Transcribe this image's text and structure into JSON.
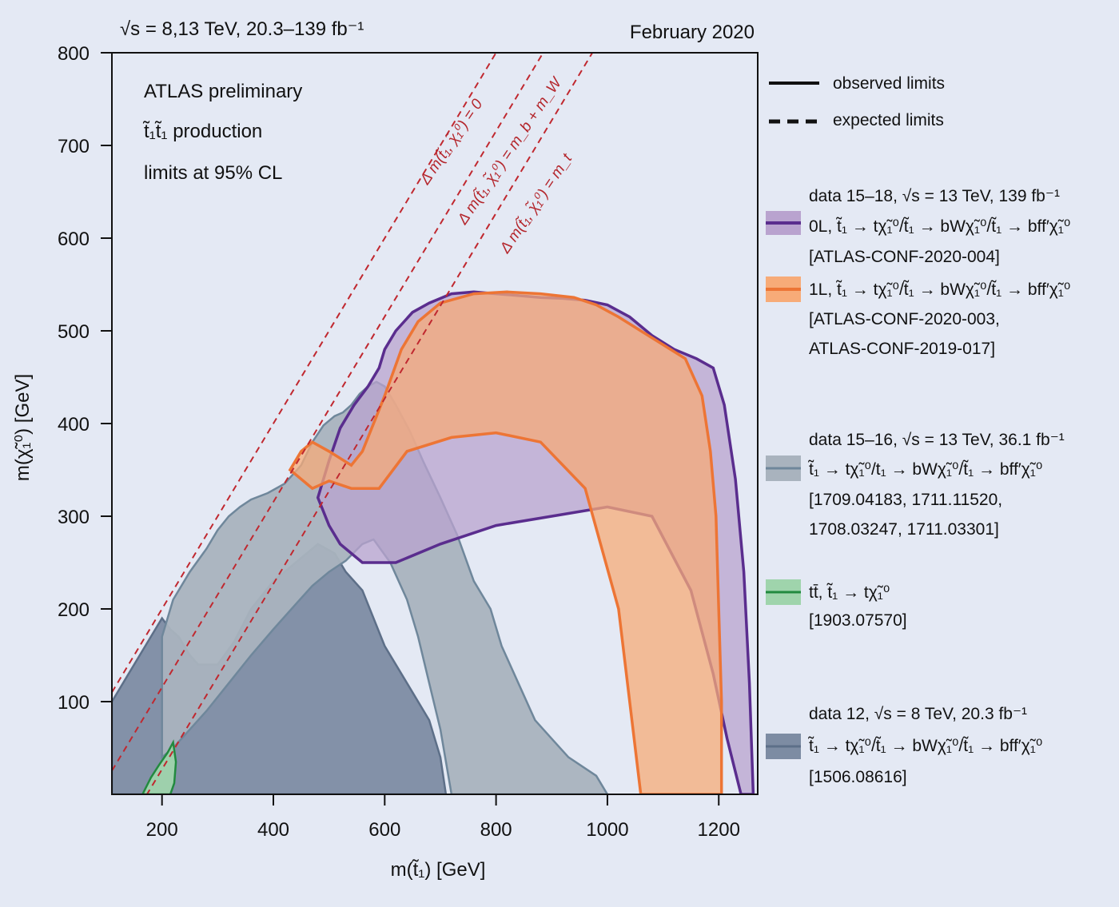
{
  "header": {
    "energy_label": "√s = 8,13 TeV, 20.3–139 fb⁻¹",
    "date_label": "February 2020"
  },
  "annotations": {
    "experiment": "ATLAS preliminary",
    "process": "t̃₁t̃₁ production",
    "cl": "limits at 95% CL"
  },
  "diagonals": {
    "d0": "Δ m(t̃₁, χ̃₁⁰) = 0",
    "dbw": "Δ m(t̃₁, χ̃₁⁰) = m_b + m_W",
    "dt": "Δ m(t̃₁, χ̃₁⁰) = m_t"
  },
  "legend": {
    "observed": "observed limits",
    "expected": "expected limits",
    "entries": [
      {
        "header": "data 15–18,  √s = 13 TeV, 139 fb⁻¹",
        "line1": "0L, t̃₁ → tχ̃₁⁰/t̃₁ → bWχ̃₁⁰/t̃₁ → bff′χ̃₁⁰",
        "line2": "[ATLAS-CONF-2020-004]",
        "line3": "",
        "fill": "#b9a3cf",
        "stroke": "#5a2d8e"
      },
      {
        "header": "",
        "line1": "1L, t̃₁ → tχ̃₁⁰/t̃₁ → bWχ̃₁⁰/t̃₁ → bff′χ̃₁⁰",
        "line2": "[ATLAS-CONF-2020-003,",
        "line3": "ATLAS-CONF-2019-017]",
        "fill": "#f7ab78",
        "stroke": "#ed7535"
      },
      {
        "header": "data 15–16, √s = 13 TeV, 36.1 fb⁻¹",
        "line1": "t̃₁ → tχ̃₁⁰/t₁ → bWχ̃₁⁰/t̃₁ → bff′χ̃₁⁰",
        "line2": "[1709.04183, 1711.11520,",
        "line3": "1708.03247, 1711.03301]",
        "fill": "#a9b3be",
        "stroke": "#6f879b"
      },
      {
        "header": "",
        "line1": "tt̄, t̃₁ → tχ̃₁⁰",
        "line2": "[1903.07570]",
        "line3": "",
        "fill": "#9fd4ac",
        "stroke": "#228a3f"
      },
      {
        "header": "data 12, √s = 8 TeV, 20.3 fb⁻¹",
        "line1": "t̃₁ → tχ̃₁⁰/t̃₁ → bWχ̃₁⁰/t̃₁ → bff′χ̃₁⁰",
        "line2": "[1506.08616]",
        "line3": "",
        "fill": "#7d8ca3",
        "stroke": "#5d6f88"
      }
    ]
  },
  "chart_data": {
    "type": "area",
    "title": "",
    "xlabel": "m(t̃₁) [GeV]",
    "ylabel": "m(χ̃₁⁰) [GeV]",
    "xlim": [
      110,
      1270
    ],
    "ylim": [
      0,
      800
    ],
    "xticks": [
      200,
      400,
      600,
      800,
      1000,
      1200
    ],
    "yticks": [
      100,
      200,
      300,
      400,
      500,
      600,
      700,
      800
    ],
    "diagonal_offsets": [
      0,
      84.6,
      173
    ],
    "series": [
      {
        "name": "data 12, √s = 8 TeV, 20.3 fb⁻¹",
        "fill": "#7d8ca3",
        "stroke": "#5d6f88",
        "points": [
          [
            110,
            0
          ],
          [
            110,
            100
          ],
          [
            140,
            130
          ],
          [
            170,
            160
          ],
          [
            200,
            190
          ],
          [
            215,
            178
          ],
          [
            230,
            170
          ],
          [
            250,
            150
          ],
          [
            265,
            140
          ],
          [
            300,
            140
          ],
          [
            330,
            165
          ],
          [
            360,
            200
          ],
          [
            400,
            230
          ],
          [
            430,
            245
          ],
          [
            460,
            260
          ],
          [
            480,
            270
          ],
          [
            510,
            260
          ],
          [
            530,
            240
          ],
          [
            560,
            220
          ],
          [
            600,
            160
          ],
          [
            640,
            120
          ],
          [
            680,
            80
          ],
          [
            700,
            40
          ],
          [
            710,
            0
          ]
        ]
      },
      {
        "name": "data 15–16, √s = 13 TeV, 36.1 fb⁻¹",
        "fill": "#a9b3be",
        "stroke": "#6f879b",
        "points": [
          [
            200,
            170
          ],
          [
            220,
            210
          ],
          [
            250,
            240
          ],
          [
            280,
            265
          ],
          [
            300,
            285
          ],
          [
            320,
            300
          ],
          [
            340,
            310
          ],
          [
            360,
            318
          ],
          [
            390,
            325
          ],
          [
            420,
            335
          ],
          [
            450,
            355
          ],
          [
            470,
            380
          ],
          [
            490,
            398
          ],
          [
            510,
            408
          ],
          [
            525,
            412
          ],
          [
            540,
            420
          ],
          [
            555,
            432
          ],
          [
            570,
            440
          ],
          [
            585,
            445
          ],
          [
            600,
            440
          ],
          [
            620,
            420
          ],
          [
            645,
            392
          ],
          [
            670,
            358
          ],
          [
            700,
            320
          ],
          [
            730,
            280
          ],
          [
            760,
            230
          ],
          [
            790,
            200
          ],
          [
            810,
            160
          ],
          [
            840,
            120
          ],
          [
            870,
            80
          ],
          [
            900,
            60
          ],
          [
            930,
            40
          ],
          [
            980,
            20
          ],
          [
            1000,
            0
          ],
          [
            720,
            0
          ],
          [
            700,
            70
          ],
          [
            680,
            120
          ],
          [
            660,
            170
          ],
          [
            640,
            210
          ],
          [
            610,
            250
          ],
          [
            580,
            275
          ],
          [
            560,
            270
          ],
          [
            530,
            252
          ],
          [
            500,
            240
          ],
          [
            470,
            225
          ],
          [
            440,
            205
          ],
          [
            400,
            178
          ],
          [
            360,
            150
          ],
          [
            320,
            120
          ],
          [
            280,
            90
          ],
          [
            250,
            70
          ],
          [
            220,
            50
          ],
          [
            200,
            40
          ]
        ]
      },
      {
        "name": "0L, t̃₁ → tχ̃₁⁰/t̃₁ → bWχ̃₁⁰/t̃₁ → bff′χ̃₁⁰",
        "fill": "#b9a3cf",
        "stroke": "#5a2d8e",
        "points": [
          [
            480,
            320
          ],
          [
            500,
            360
          ],
          [
            520,
            395
          ],
          [
            545,
            420
          ],
          [
            570,
            440
          ],
          [
            590,
            460
          ],
          [
            600,
            480
          ],
          [
            620,
            500
          ],
          [
            650,
            520
          ],
          [
            680,
            530
          ],
          [
            720,
            540
          ],
          [
            760,
            542
          ],
          [
            800,
            540
          ],
          [
            840,
            538
          ],
          [
            880,
            536
          ],
          [
            920,
            535
          ],
          [
            960,
            533
          ],
          [
            1000,
            528
          ],
          [
            1040,
            515
          ],
          [
            1080,
            495
          ],
          [
            1120,
            480
          ],
          [
            1160,
            470
          ],
          [
            1190,
            460
          ],
          [
            1210,
            420
          ],
          [
            1230,
            340
          ],
          [
            1245,
            240
          ],
          [
            1255,
            120
          ],
          [
            1262,
            0
          ],
          [
            1240,
            0
          ],
          [
            1215,
            60
          ],
          [
            1190,
            130
          ],
          [
            1150,
            220
          ],
          [
            1080,
            300
          ],
          [
            1000,
            310
          ],
          [
            900,
            300
          ],
          [
            800,
            290
          ],
          [
            700,
            270
          ],
          [
            620,
            250
          ],
          [
            560,
            250
          ],
          [
            520,
            270
          ],
          [
            500,
            290
          ]
        ]
      },
      {
        "name": "1L, t̃₁ → tχ̃₁⁰/t̃₁ → bWχ̃₁⁰/t̃₁ → bff′χ̃₁⁰",
        "fill": "#f7ab78",
        "stroke": "#ed7535",
        "points": [
          [
            430,
            350
          ],
          [
            450,
            370
          ],
          [
            470,
            380
          ],
          [
            500,
            370
          ],
          [
            540,
            355
          ],
          [
            560,
            370
          ],
          [
            580,
            400
          ],
          [
            600,
            430
          ],
          [
            630,
            480
          ],
          [
            660,
            510
          ],
          [
            700,
            530
          ],
          [
            760,
            540
          ],
          [
            820,
            542
          ],
          [
            880,
            540
          ],
          [
            940,
            536
          ],
          [
            980,
            528
          ],
          [
            1020,
            515
          ],
          [
            1060,
            500
          ],
          [
            1100,
            485
          ],
          [
            1140,
            470
          ],
          [
            1170,
            430
          ],
          [
            1185,
            370
          ],
          [
            1195,
            300
          ],
          [
            1200,
            200
          ],
          [
            1205,
            100
          ],
          [
            1205,
            0
          ],
          [
            1060,
            0
          ],
          [
            1020,
            200
          ],
          [
            960,
            330
          ],
          [
            880,
            380
          ],
          [
            800,
            390
          ],
          [
            720,
            385
          ],
          [
            640,
            370
          ],
          [
            590,
            330
          ],
          [
            540,
            330
          ],
          [
            500,
            338
          ],
          [
            470,
            330
          ]
        ]
      },
      {
        "name": "tt̄, t̃₁ → tχ̃₁⁰",
        "fill": "#9fd4ac",
        "stroke": "#228a3f",
        "points": [
          [
            165,
            0
          ],
          [
            180,
            18
          ],
          [
            195,
            32
          ],
          [
            210,
            45
          ],
          [
            220,
            56
          ],
          [
            225,
            35
          ],
          [
            222,
            12
          ],
          [
            215,
            0
          ]
        ]
      }
    ]
  }
}
